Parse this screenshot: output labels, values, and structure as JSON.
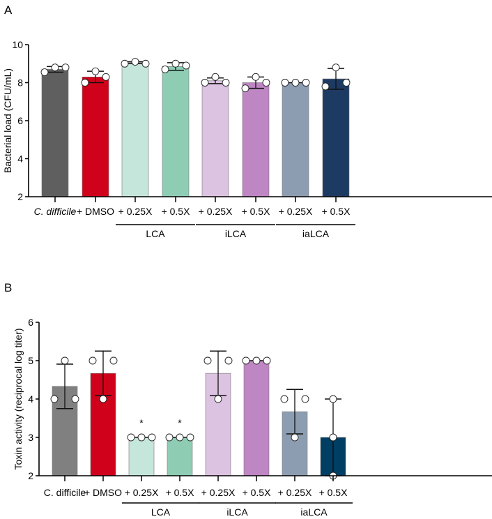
{
  "chart_data": [
    {
      "type": "bar",
      "panel_label": "A",
      "title": "",
      "ylabel": "Bacterial load (CFU/mL)",
      "xlabel": "",
      "ylim": [
        2,
        10
      ],
      "yticks": [
        "2",
        "4",
        "6",
        "8",
        "10"
      ],
      "categories": [
        "C. difficile",
        "+ DMSO",
        "+ 0.25X",
        "+ 0.5X",
        "+ 0.25X",
        "+ 0.5X",
        "+ 0.25X",
        "+ 0.5X"
      ],
      "first_label_italic": true,
      "groups": [
        {
          "label": "LCA",
          "members": [
            2,
            3
          ]
        },
        {
          "label": "iLCA",
          "members": [
            4,
            5
          ]
        },
        {
          "label": "iaLCA",
          "members": [
            6,
            7
          ]
        }
      ],
      "values": [
        8.7,
        8.3,
        9.05,
        8.85,
        8.1,
        8.0,
        8.0,
        8.2
      ],
      "error": [
        0.15,
        0.3,
        0.05,
        0.2,
        0.15,
        0.3,
        0.0,
        0.55
      ],
      "points": [
        [
          8.55,
          8.8,
          8.8
        ],
        [
          8.0,
          8.6,
          8.3
        ],
        [
          9.0,
          9.1,
          9.0
        ],
        [
          8.7,
          9.0,
          8.9
        ],
        [
          8.0,
          8.3,
          8.0
        ],
        [
          7.7,
          8.3,
          8.0
        ],
        [
          8.0,
          8.0,
          8.0
        ],
        [
          7.8,
          8.8,
          8.0
        ]
      ],
      "colors": [
        "#5f5f5f",
        "#d0021b",
        "#c5e6da",
        "#8ecdb4",
        "#dcc3e1",
        "#bf86c4",
        "#8d9db1",
        "#1d3a63"
      ],
      "annotations": []
    },
    {
      "type": "bar",
      "panel_label": "B",
      "title": "",
      "ylabel": "Toxin activity (reciprocal log titer)",
      "xlabel": "",
      "ylim": [
        2,
        6
      ],
      "yticks": [
        "2",
        "3",
        "4",
        "5",
        "6"
      ],
      "categories": [
        "C. difficile",
        "+ DMSO",
        "+ 0.25X",
        "+ 0.5X",
        "+ 0.25X",
        "+ 0.5X",
        "+ 0.25X",
        "+ 0.5X"
      ],
      "first_label_italic": false,
      "groups": [
        {
          "label": "LCA",
          "members": [
            2,
            3
          ]
        },
        {
          "label": "iLCA",
          "members": [
            4,
            5
          ]
        },
        {
          "label": "iaLCA",
          "members": [
            6,
            7
          ]
        }
      ],
      "values": [
        4.33,
        4.67,
        3.0,
        3.0,
        4.67,
        5.0,
        3.67,
        3.0
      ],
      "error": [
        0.58,
        0.58,
        0.0,
        0.0,
        0.58,
        0.0,
        0.58,
        1.0
      ],
      "points": [
        [
          4,
          5,
          4
        ],
        [
          5,
          4,
          5
        ],
        [
          3,
          3,
          3
        ],
        [
          3,
          3,
          3
        ],
        [
          5,
          4,
          5
        ],
        [
          5,
          5,
          5
        ],
        [
          4,
          3,
          4
        ],
        [
          2,
          3,
          4
        ]
      ],
      "colors": [
        "#808080",
        "#d0021b",
        "#c5e6da",
        "#8ecdb4",
        "#dcc3e1",
        "#bf86c4",
        "#8d9db1",
        "#003e63"
      ],
      "annotations": [
        "",
        "",
        "*",
        "*",
        "",
        "",
        "",
        ""
      ]
    }
  ]
}
